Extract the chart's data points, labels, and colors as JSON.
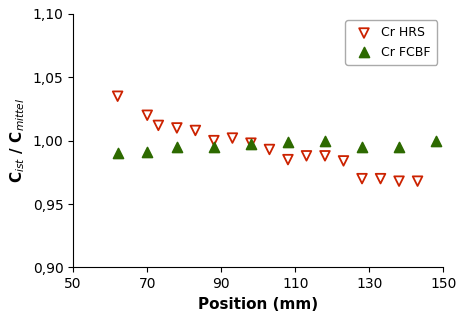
{
  "hrs_x": [
    62,
    70,
    73,
    78,
    83,
    88,
    93,
    98,
    103,
    108,
    113,
    118,
    123,
    128,
    133,
    138,
    143
  ],
  "hrs_y": [
    1.035,
    1.02,
    1.012,
    1.01,
    1.008,
    1.0,
    1.002,
    0.998,
    0.993,
    0.985,
    0.988,
    0.988,
    0.984,
    0.97,
    0.97,
    0.968,
    0.968
  ],
  "fcbf_x": [
    62,
    70,
    78,
    88,
    98,
    108,
    118,
    128,
    138,
    148
  ],
  "fcbf_y": [
    0.99,
    0.991,
    0.995,
    0.995,
    0.997,
    0.999,
    1.0,
    0.995,
    0.995,
    1.0
  ],
  "hrs_color": "#cc2200",
  "fcbf_color": "#2d6a00",
  "xlabel": "Position (mm)",
  "ylabel": "C$_{ist}$ / C$_{mittel}$",
  "xlim": [
    50,
    150
  ],
  "ylim": [
    0.9,
    1.1
  ],
  "xticks": [
    50,
    70,
    90,
    110,
    130,
    150
  ],
  "yticks": [
    0.9,
    0.95,
    1.0,
    1.05,
    1.1
  ],
  "ytick_labels": [
    "0,90",
    "0,95",
    "1,00",
    "1,05",
    "1,10"
  ],
  "xtick_labels": [
    "50",
    "70",
    "90",
    "110",
    "130",
    "150"
  ],
  "legend_hrs": "Cr HRS",
  "legend_fcbf": "Cr FCBF"
}
